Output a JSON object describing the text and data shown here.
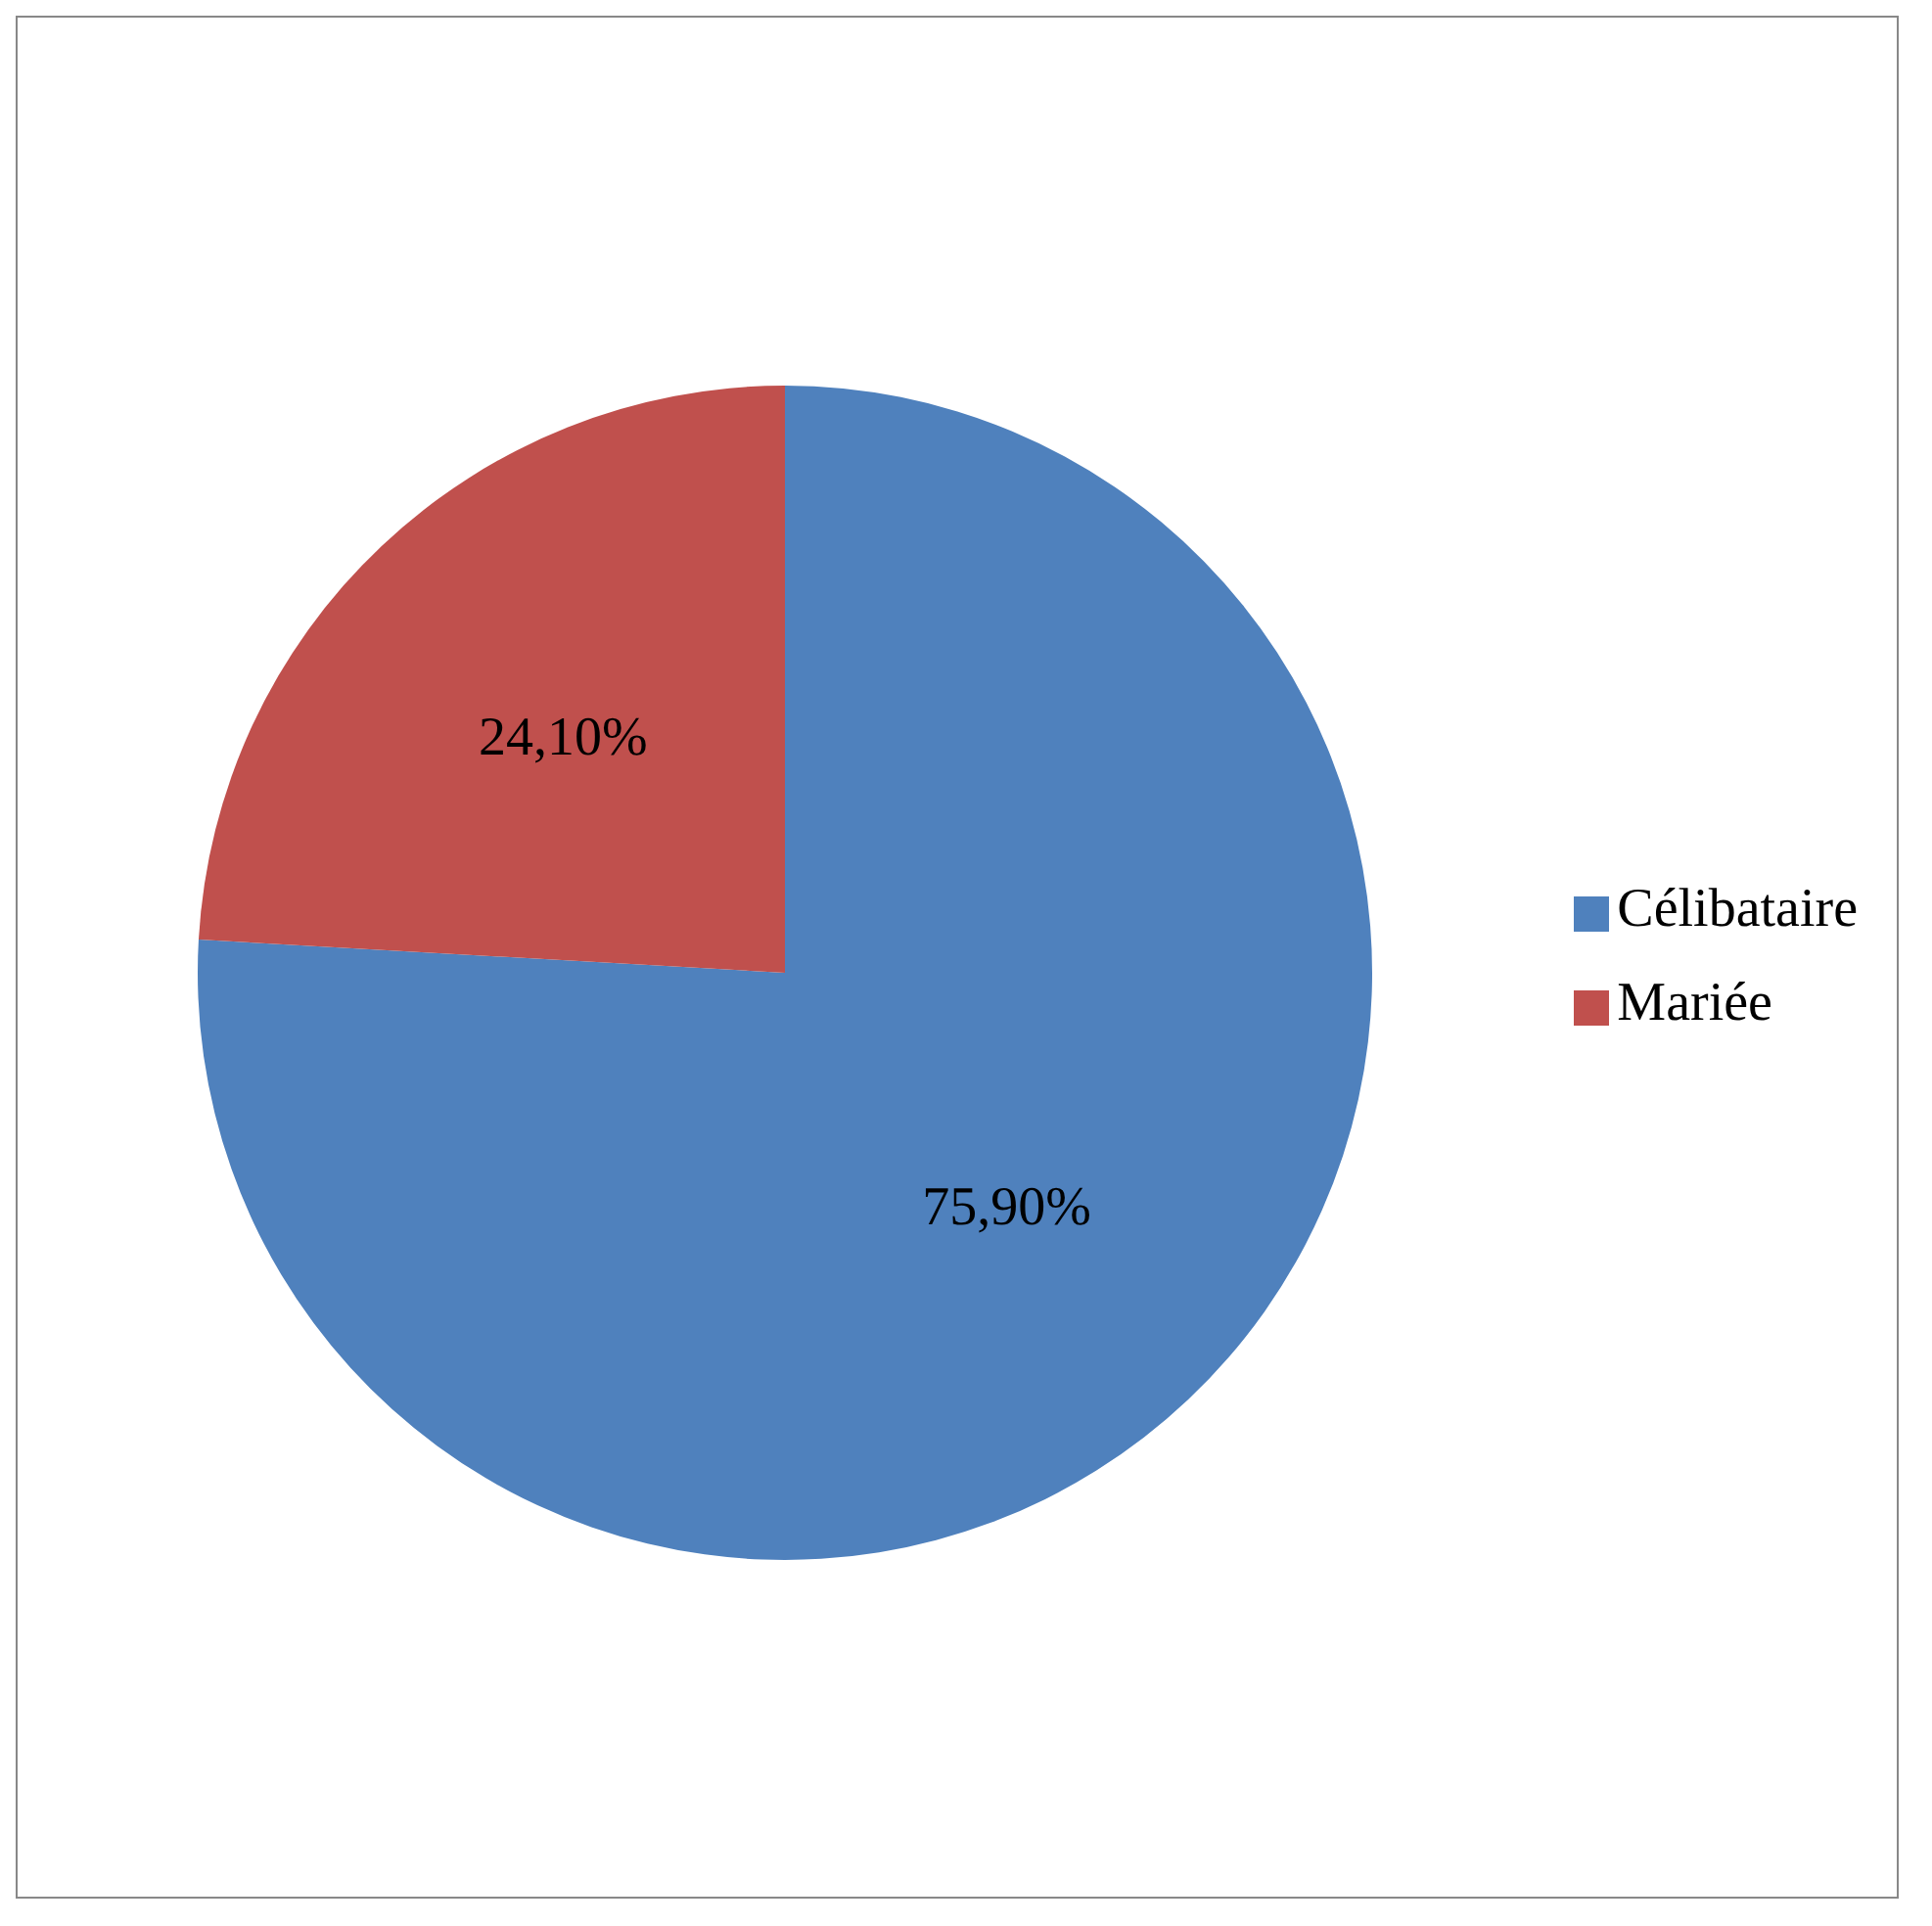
{
  "chart_data": {
    "type": "pie",
    "categories": [
      "Célibataire",
      "Mariée"
    ],
    "values": [
      75.9,
      24.1
    ],
    "colors": [
      "#4f81bd",
      "#c0504d"
    ],
    "value_labels": [
      "75,90%",
      "24,10%"
    ],
    "legend": "right"
  }
}
